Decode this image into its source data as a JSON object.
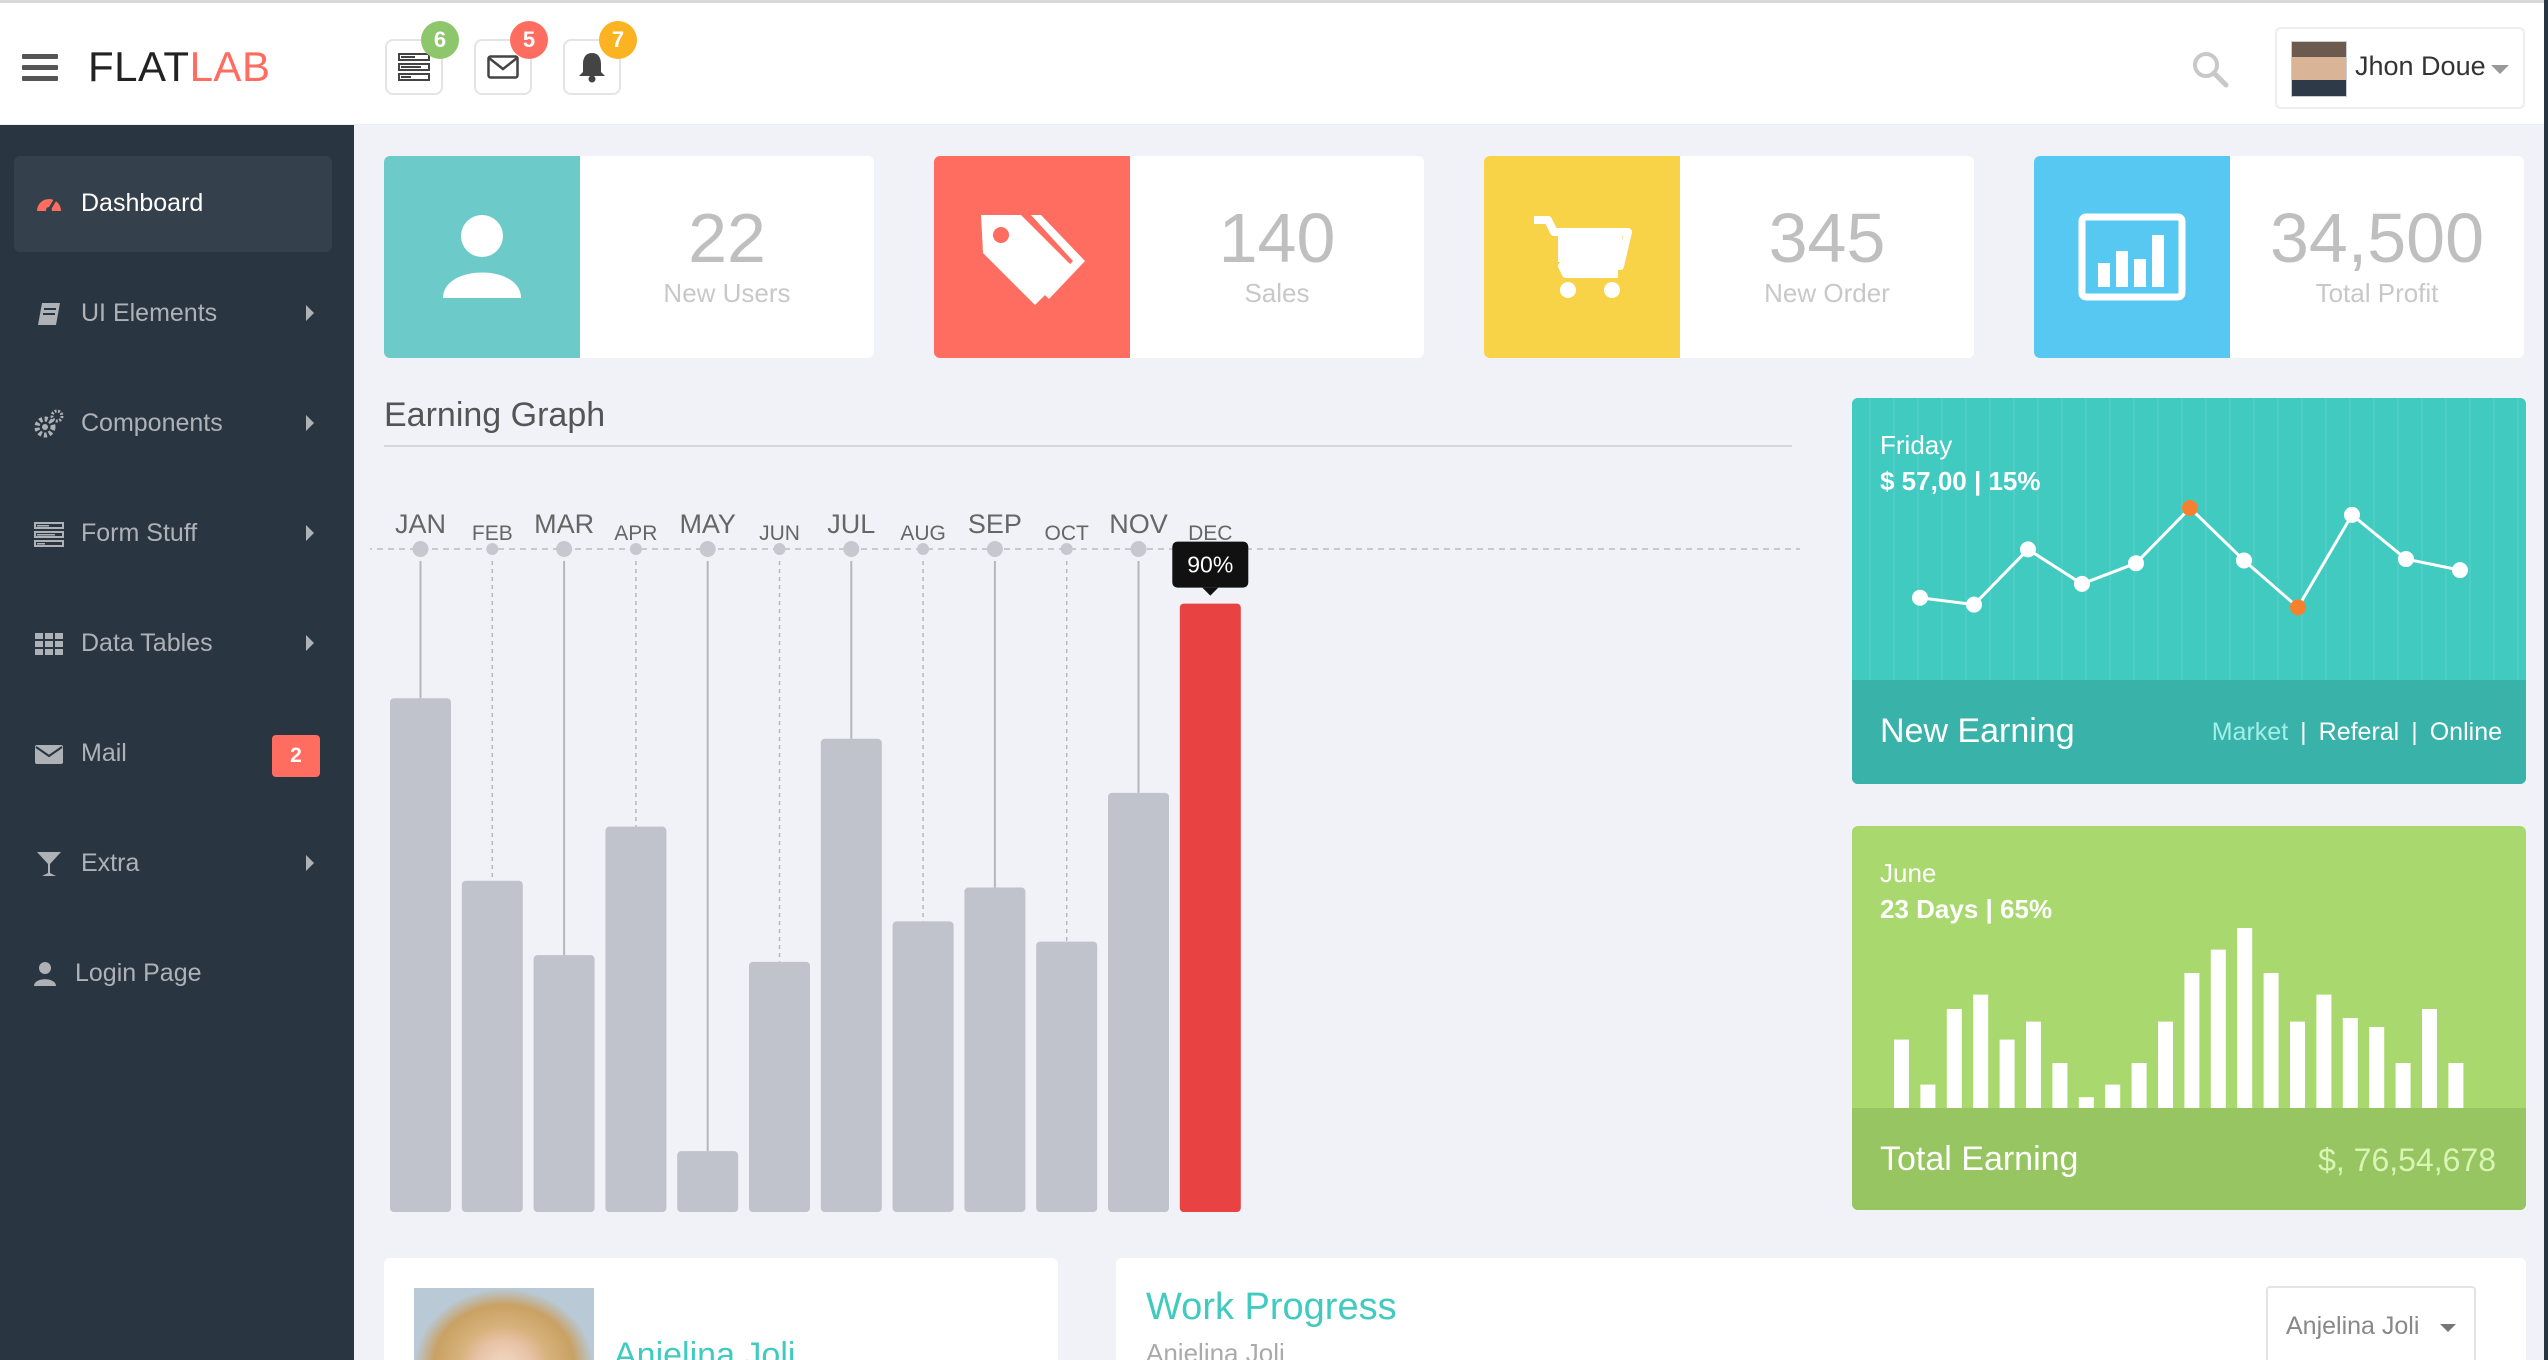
{
  "brand": {
    "part1": "FLAT",
    "part2": "LAB"
  },
  "header": {
    "notifications": [
      {
        "icon": "tasks-icon",
        "count": "6",
        "color": "#8dc66b"
      },
      {
        "icon": "envelope-icon",
        "count": "5",
        "color": "#ff6c60"
      },
      {
        "icon": "bell-icon",
        "count": "7",
        "color": "#fcb322"
      }
    ],
    "user_name": "Jhon Doue"
  },
  "sidebar": {
    "items": [
      {
        "label": "Dashboard",
        "icon": "dashboard-icon",
        "active": true
      },
      {
        "label": "UI Elements",
        "icon": "book-icon",
        "arrow": true
      },
      {
        "label": "Components",
        "icon": "cogs-icon",
        "arrow": true
      },
      {
        "label": "Form Stuff",
        "icon": "tasks-icon",
        "arrow": true
      },
      {
        "label": "Data Tables",
        "icon": "grid-icon",
        "arrow": true
      },
      {
        "label": "Mail",
        "icon": "envelope-icon",
        "badge": "2"
      },
      {
        "label": "Extra",
        "icon": "glass-icon",
        "arrow": true
      },
      {
        "label": "Login Page",
        "icon": "user-icon"
      }
    ]
  },
  "stats": [
    {
      "value": "22",
      "label": "New Users",
      "color": "#6ccac9",
      "icon": "user-icon"
    },
    {
      "value": "140",
      "label": "Sales",
      "color": "#ff6c60",
      "icon": "tags-icon"
    },
    {
      "value": "345",
      "label": "New Order",
      "color": "#f8d347",
      "icon": "cart-icon"
    },
    {
      "value": "34,500",
      "label": "Total Profit",
      "color": "#57c8f2",
      "icon": "bar-chart-icon"
    }
  ],
  "earning_graph": {
    "title": "Earning Graph",
    "chart_data": {
      "type": "bar",
      "categories": [
        "JAN",
        "FEB",
        "MAR",
        "APR",
        "MAY",
        "JUN",
        "JUL",
        "AUG",
        "SEP",
        "OCT",
        "NOV",
        "DEC"
      ],
      "values": [
        76,
        49,
        38,
        57,
        9,
        37,
        70,
        43,
        48,
        40,
        62,
        90
      ],
      "ylim": [
        0,
        100
      ],
      "highlight_index": 11,
      "highlight_label": "90%",
      "bar_color": "#c0c2cc",
      "highlight_color": "#e84242"
    }
  },
  "new_earning": {
    "day": "Friday",
    "amount": "$ 57,00 | 15%",
    "title": "New Earning",
    "links": [
      "Market",
      "Referal",
      "Online"
    ],
    "chart_data": {
      "type": "line",
      "values": [
        35,
        30,
        70,
        45,
        60,
        100,
        62,
        28,
        95,
        63,
        55
      ],
      "highlight_indices": [
        5,
        7
      ],
      "line_color": "#ffffff",
      "highlight_color": "#f5812f"
    }
  },
  "total_earning": {
    "month": "June",
    "days": "23 Days | 65%",
    "title": "Total Earning",
    "value": "$, 76,54,678",
    "chart_data": {
      "type": "bar",
      "values": [
        38,
        13,
        55,
        63,
        38,
        48,
        25,
        6,
        13,
        25,
        48,
        75,
        88,
        100,
        75,
        48,
        63,
        50,
        45,
        25,
        55,
        25
      ]
    }
  },
  "bottom": {
    "profile_name": "Anjelina Joli",
    "work_title": "Work Progress",
    "work_sub": "Anjelina Joli",
    "work_select": "Anjelina Joli"
  }
}
